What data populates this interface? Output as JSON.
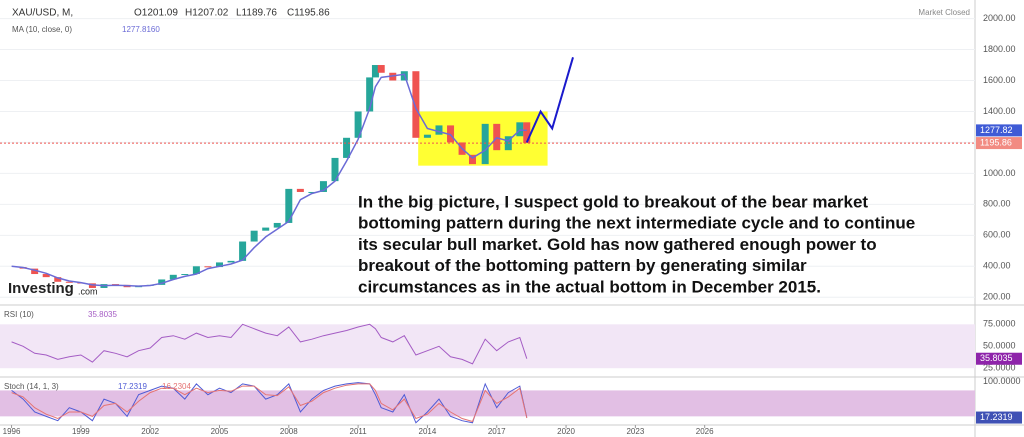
{
  "chart_data": [
    {
      "type": "candlestick",
      "symbol": "XAU/USD, M,",
      "ohlc": [
        "O1201.09",
        "H1207.02",
        "L1189.76",
        "C1195.86"
      ],
      "status": "Market Closed",
      "x": [
        1996,
        1996.5,
        1997,
        1997.5,
        1998,
        1998.5,
        1999,
        1999.5,
        2000,
        2000.5,
        2001,
        2001.5,
        2002,
        2002.5,
        2003,
        2003.5,
        2004,
        2004.5,
        2005,
        2005.5,
        2006,
        2006.5,
        2007,
        2007.5,
        2008,
        2008.5,
        2009,
        2009.5,
        2010,
        2010.5,
        2011,
        2011.5,
        2011.75,
        2012,
        2012.5,
        2013,
        2013.5,
        2014,
        2014.5,
        2015,
        2015.5,
        2015.95,
        2016.5,
        2017,
        2017.5,
        2018,
        2018.3
      ],
      "values": [
        395,
        385,
        350,
        330,
        300,
        295,
        290,
        260,
        285,
        280,
        265,
        275,
        280,
        315,
        345,
        350,
        400,
        395,
        425,
        435,
        560,
        630,
        650,
        680,
        900,
        880,
        880,
        950,
        1100,
        1230,
        1400,
        1620,
        1700,
        1650,
        1600,
        1660,
        1230,
        1250,
        1310,
        1200,
        1120,
        1060,
        1320,
        1150,
        1240,
        1330,
        1195.86
      ],
      "up_color": "#26a69a",
      "down_color": "#ef5350",
      "ma": {
        "name": "MA (10, close, 0)",
        "label": "1277.8160",
        "badge": "1277.82",
        "color": "#6b6bd6",
        "values": [
          400,
          392,
          375,
          355,
          325,
          305,
          295,
          280,
          275,
          278,
          275,
          272,
          276,
          290,
          315,
          335,
          350,
          385,
          400,
          415,
          440,
          520,
          590,
          640,
          690,
          830,
          870,
          890,
          950,
          1080,
          1220,
          1420,
          1560,
          1620,
          1630,
          1640,
          1420,
          1290,
          1270,
          1250,
          1160,
          1100,
          1150,
          1230,
          1210,
          1280,
          1277.816
        ]
      },
      "projection": {
        "color": "#1a1acc",
        "x": [
          2018.3,
          2018.9,
          2019.4,
          2020.3
        ],
        "values": [
          1200,
          1400,
          1290,
          1750
        ]
      },
      "highlight": {
        "color": "#ffff33",
        "x": [
          2013.6,
          2019.2
        ],
        "y": [
          1050,
          1400
        ]
      },
      "annotation": [
        "In the big picture, I suspect gold to breakout of the bear market",
        "bottoming pattern during the next intermediate cycle and to continue",
        "its secular bull market. Gold has now gathered enough power to",
        "breakout of the bottoming pattern by generating similar",
        "circumstances as in the actual bottom in December 2015."
      ],
      "logo": [
        "Investing",
        ".com"
      ],
      "xlim": [
        1995.5,
        2037.7
      ],
      "ylim": [
        150,
        2120
      ],
      "yticks": [
        {
          "value": 200,
          "label": "200.00"
        },
        {
          "value": 400,
          "label": "400.00"
        },
        {
          "value": 600,
          "label": "600.00"
        },
        {
          "value": 800,
          "label": "800.00"
        },
        {
          "value": 1000,
          "label": "1000.00"
        },
        {
          "value": 1200,
          "label": "1200.00"
        },
        {
          "value": 1400,
          "label": "1400.00"
        },
        {
          "value": 1600,
          "label": "1600.00"
        },
        {
          "value": 1800,
          "label": "1800.00"
        },
        {
          "value": 2000,
          "label": "2000.00"
        }
      ],
      "grid": true
    },
    {
      "type": "line",
      "title": "RSI (10)",
      "color": "#a45cc4",
      "band_color": "#f2e6f6",
      "x": [
        1996,
        1996.5,
        1997,
        1997.5,
        1998,
        1998.5,
        1999,
        1999.5,
        2000,
        2000.5,
        2001,
        2001.5,
        2002,
        2002.5,
        2003,
        2003.5,
        2004,
        2004.5,
        2005,
        2005.5,
        2006,
        2006.5,
        2007,
        2007.5,
        2008,
        2008.5,
        2009,
        2009.5,
        2010,
        2010.5,
        2011,
        2011.5,
        2011.75,
        2012,
        2012.5,
        2013,
        2013.5,
        2014,
        2014.5,
        2015,
        2015.5,
        2015.95,
        2016.5,
        2017,
        2017.5,
        2018,
        2018.3
      ],
      "values": [
        55,
        50,
        42,
        40,
        35,
        38,
        40,
        32,
        45,
        42,
        38,
        45,
        48,
        60,
        62,
        58,
        65,
        60,
        62,
        60,
        75,
        70,
        65,
        62,
        72,
        55,
        58,
        62,
        65,
        68,
        72,
        75,
        70,
        60,
        55,
        62,
        40,
        45,
        50,
        38,
        35,
        30,
        58,
        45,
        55,
        60,
        35.8035
      ],
      "xlim": [
        1995.5,
        2037.7
      ],
      "ylim": [
        15,
        97
      ],
      "yticks": [
        {
          "value": 25,
          "label": "25.0000"
        },
        {
          "value": 50,
          "label": "50.0000"
        },
        {
          "value": 75,
          "label": "75.0000"
        }
      ]
    },
    {
      "type": "line",
      "title": "Stoch (14, 1, 3)",
      "band": [
        20,
        80
      ],
      "band_color": "#e2bfe4",
      "x": [
        1996,
        1996.5,
        1997,
        1997.5,
        1998,
        1998.5,
        1999,
        1999.5,
        2000,
        2000.5,
        2001,
        2001.5,
        2002,
        2002.5,
        2003,
        2003.5,
        2004,
        2004.5,
        2005,
        2005.5,
        2006,
        2006.5,
        2007,
        2007.5,
        2008,
        2008.5,
        2009,
        2009.5,
        2010,
        2010.5,
        2011,
        2011.5,
        2011.75,
        2012,
        2012.5,
        2013,
        2013.5,
        2014,
        2014.5,
        2015,
        2015.5,
        2015.95,
        2016.5,
        2017,
        2017.5,
        2018,
        2018.3
      ],
      "series": [
        {
          "color": "#4f5bd5",
          "values": [
            80,
            60,
            30,
            20,
            10,
            40,
            30,
            10,
            60,
            50,
            20,
            70,
            80,
            90,
            85,
            60,
            95,
            70,
            85,
            75,
            95,
            90,
            60,
            70,
            95,
            30,
            60,
            80,
            90,
            95,
            98,
            95,
            70,
            40,
            30,
            70,
            5,
            30,
            60,
            20,
            10,
            5,
            95,
            40,
            75,
            90,
            17.2319
          ]
        },
        {
          "color": "#e57373",
          "values": [
            75,
            65,
            40,
            25,
            15,
            30,
            30,
            20,
            45,
            50,
            30,
            55,
            75,
            85,
            85,
            70,
            85,
            75,
            80,
            78,
            90,
            90,
            70,
            68,
            88,
            45,
            55,
            75,
            85,
            92,
            95,
            95,
            80,
            50,
            35,
            60,
            15,
            25,
            50,
            30,
            15,
            8,
            80,
            50,
            65,
            85,
            16.2304
          ]
        }
      ],
      "xlim": [
        1995.5,
        2037.7
      ],
      "ylim": [
        0,
        111
      ],
      "yticks": [
        {
          "value": 100,
          "label": "100.0000"
        }
      ],
      "xticks": [
        1996,
        1999,
        2002,
        2005,
        2008,
        2011,
        2014,
        2017,
        2020,
        2023,
        2026
      ]
    }
  ]
}
